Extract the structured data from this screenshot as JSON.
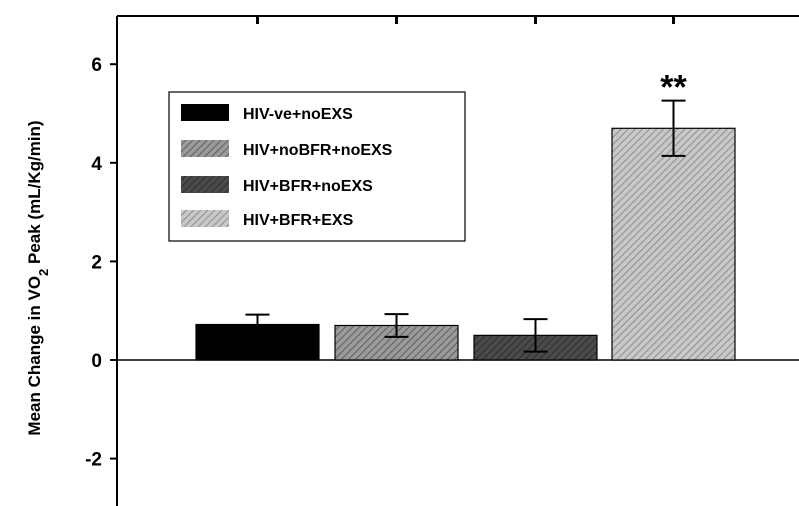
{
  "chart_data": {
    "type": "bar",
    "categories": [
      "HIV-ve+noEXS",
      "HIV+noBFR+noEXS",
      "HIV+BFR+noEXS",
      "HIV+BFR+EXS"
    ],
    "values": [
      0.72,
      0.7,
      0.5,
      4.7
    ],
    "errors": [
      0.2,
      0.23,
      0.33,
      0.56
    ],
    "ylabel_parts": [
      "Mean Change in VO",
      "2",
      " Peak (mL/Kg/min)"
    ],
    "ylim": [
      -3,
      7
    ],
    "yticks": [
      -2,
      0,
      2,
      4,
      6
    ],
    "ytick_labels": [
      "-2",
      "0",
      "2",
      "4",
      "6"
    ],
    "grid": false,
    "legend": {
      "placement": "upper-left",
      "entries": [
        "HIV-ve+noEXS",
        "HIV+noBFR+noEXS",
        "HIV+BFR+noEXS",
        "HIV+BFR+EXS"
      ]
    },
    "annotations": [
      {
        "text": "**",
        "category": "HIV+BFR+EXS"
      }
    ],
    "colors": [
      "#000000",
      "#8a8a8a",
      "#404040",
      "#b0b0b0"
    ]
  }
}
